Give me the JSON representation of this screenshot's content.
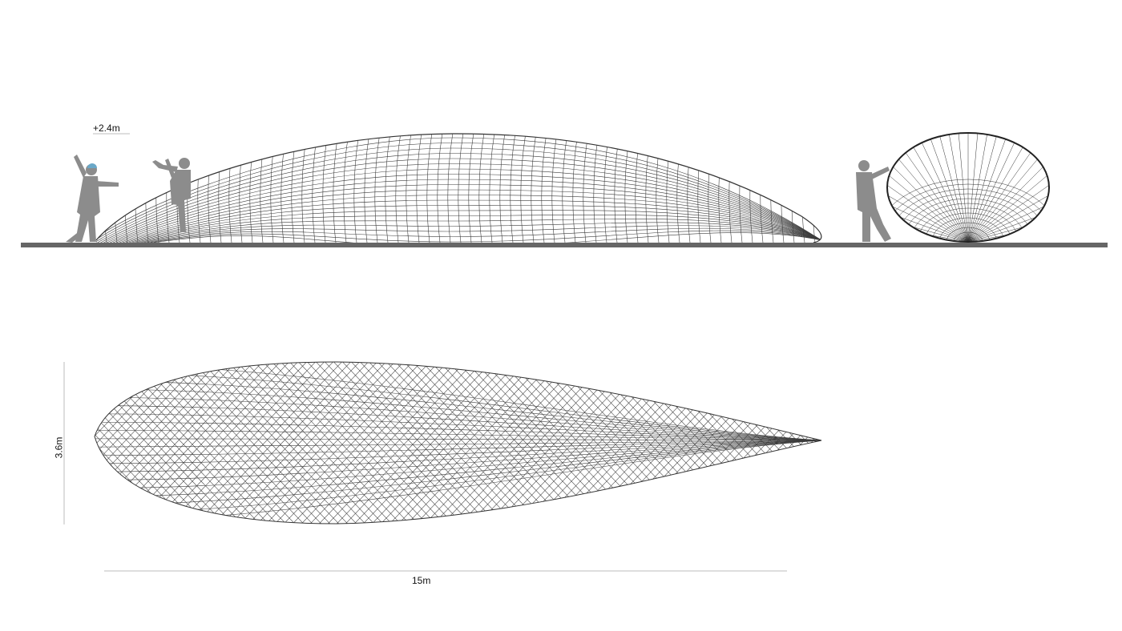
{
  "dimensions": {
    "height_label": "+2.4m",
    "width_label": "3.6m",
    "length_label": "15m"
  },
  "colors": {
    "ground": "#666666",
    "silhouette": "#8c8c8c",
    "line": "#3c3c3c",
    "dim_line": "#bdbdbd"
  }
}
